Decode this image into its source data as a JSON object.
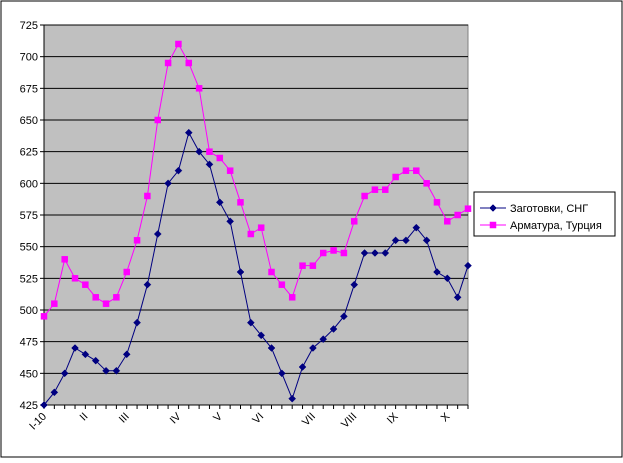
{
  "chart_data": {
    "type": "line",
    "title": "",
    "xlabel": "",
    "ylabel": "",
    "ylim": [
      425,
      725
    ],
    "yticks": [
      425,
      450,
      475,
      500,
      525,
      550,
      575,
      600,
      625,
      650,
      675,
      700,
      725
    ],
    "grid": "horizontal",
    "plot_background": "#c0c0c0",
    "legend_position": "right",
    "x_tick_labels": [
      {
        "label": "I-10",
        "index": 0
      },
      {
        "label": "II",
        "index": 4
      },
      {
        "label": "III",
        "index": 8
      },
      {
        "label": "IV",
        "index": 13
      },
      {
        "label": "V",
        "index": 17
      },
      {
        "label": "VI",
        "index": 21
      },
      {
        "label": "VII",
        "index": 26
      },
      {
        "label": "VIII",
        "index": 30
      },
      {
        "label": "IX",
        "index": 34
      },
      {
        "label": "X",
        "index": 39
      }
    ],
    "x": [
      0,
      1,
      2,
      3,
      4,
      5,
      6,
      7,
      8,
      9,
      10,
      11,
      12,
      13,
      14,
      15,
      16,
      17,
      18,
      19,
      20,
      21,
      22,
      23,
      24,
      25,
      26,
      27,
      28,
      29,
      30,
      31,
      32,
      33,
      34,
      35,
      36,
      37,
      38,
      39,
      40,
      41
    ],
    "series": [
      {
        "name": "Заготовки, СНГ",
        "color": "#000080",
        "marker": "diamond",
        "values": [
          425,
          435,
          450,
          470,
          465,
          460,
          452,
          452,
          465,
          490,
          520,
          560,
          600,
          610,
          640,
          625,
          615,
          585,
          570,
          530,
          490,
          480,
          470,
          450,
          430,
          455,
          470,
          477,
          485,
          495,
          520,
          545,
          545,
          545,
          555,
          555,
          565,
          555,
          530,
          525,
          510,
          535
        ]
      },
      {
        "name": "Арматура, Турция",
        "color": "#ff00ff",
        "marker": "square",
        "values": [
          495,
          505,
          540,
          525,
          520,
          510,
          505,
          510,
          530,
          555,
          590,
          650,
          695,
          710,
          695,
          675,
          625,
          620,
          610,
          585,
          560,
          565,
          530,
          520,
          510,
          535,
          535,
          545,
          547,
          545,
          570,
          590,
          595,
          595,
          605,
          610,
          610,
          600,
          585,
          570,
          575,
          580
        ]
      }
    ]
  }
}
